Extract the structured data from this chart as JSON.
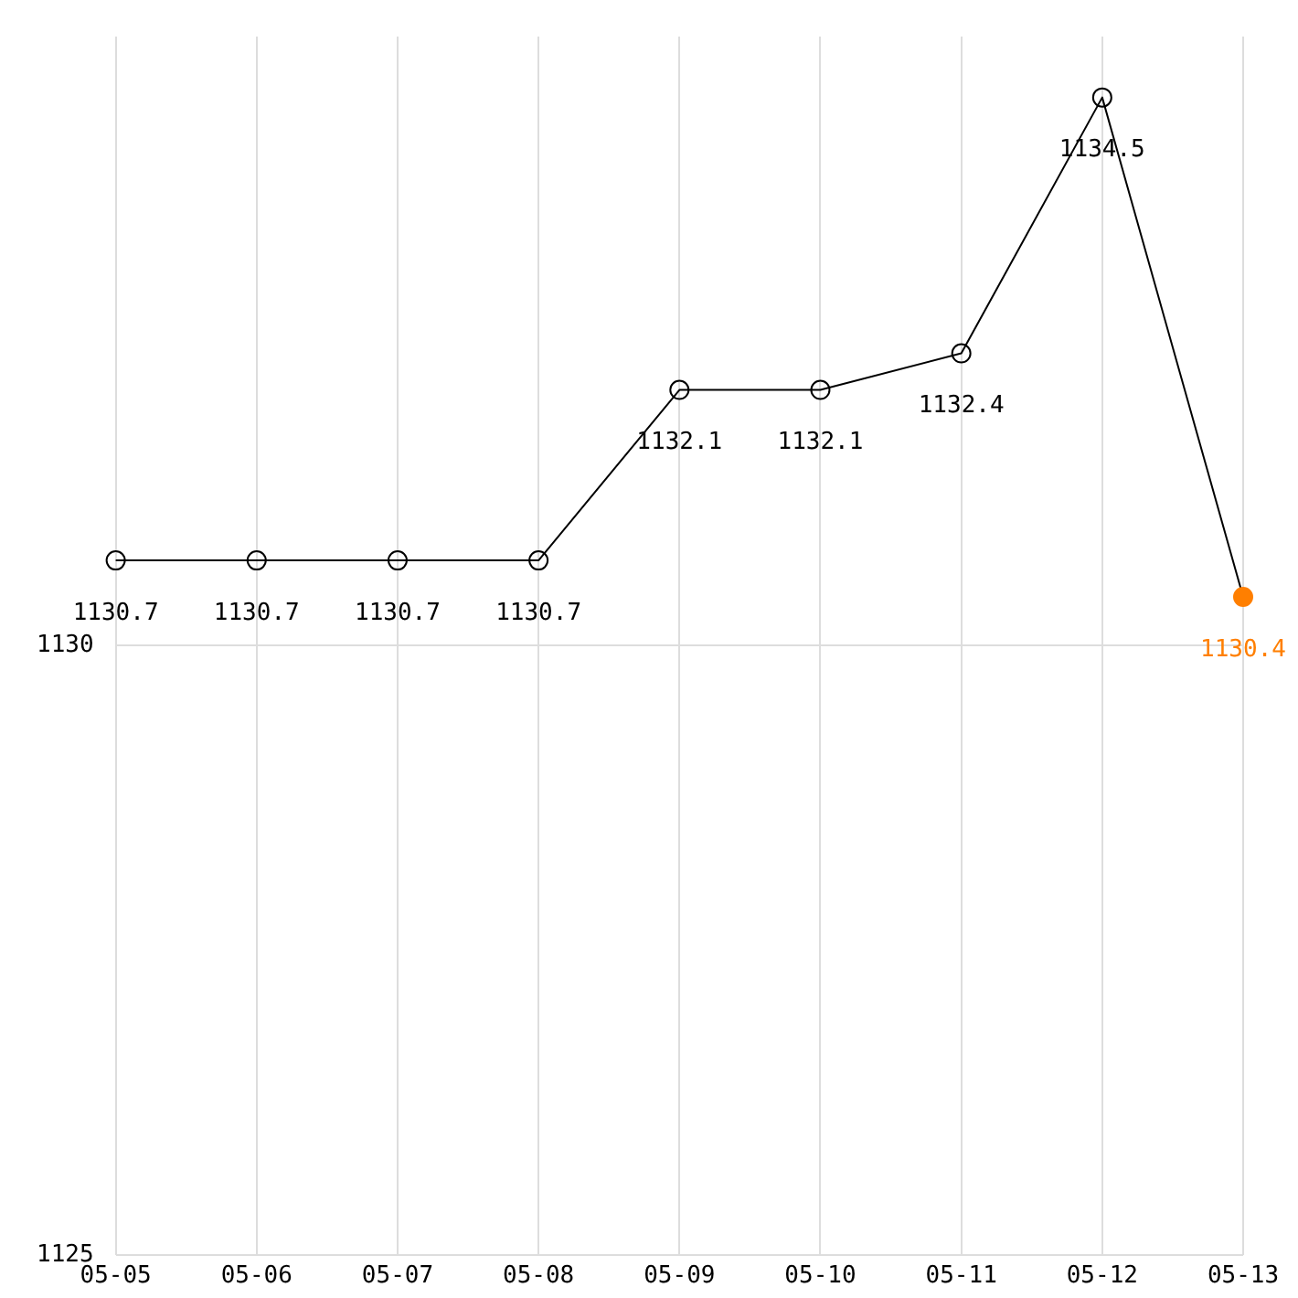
{
  "chart_data": {
    "type": "line",
    "categories": [
      "05-05",
      "05-06",
      "05-07",
      "05-08",
      "05-09",
      "05-10",
      "05-11",
      "05-12",
      "05-13"
    ],
    "series": [
      {
        "color": "#000000",
        "colors": [
          "#000000",
          "#000000",
          "#000000",
          "#000000",
          "#000000",
          "#000000",
          "#000000",
          "#000000",
          "#ff7f00"
        ],
        "values": [
          1130.7,
          1130.7,
          1130.7,
          1130.7,
          1132.1,
          1132.1,
          1132.4,
          1134.5,
          1130.4
        ]
      }
    ],
    "ylim": [
      1125,
      1135
    ],
    "yticks": [
      1125,
      1130
    ],
    "grid": true,
    "data_labels": true,
    "marker": "circle"
  }
}
